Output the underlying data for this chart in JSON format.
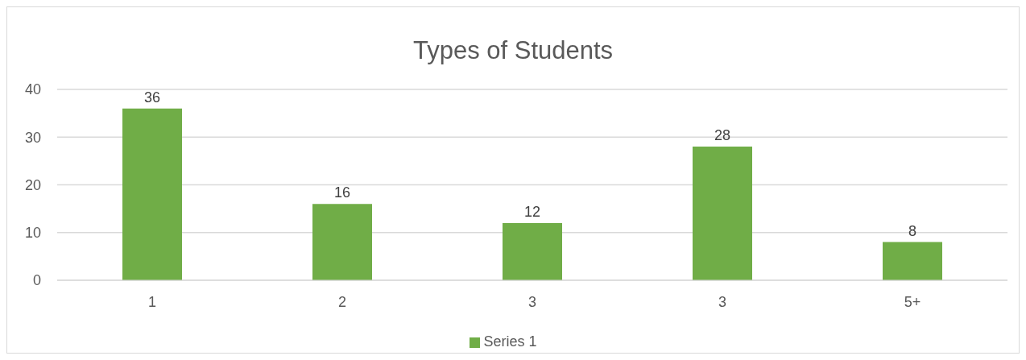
{
  "chart_data": {
    "type": "bar",
    "title": "Types of Students",
    "categories": [
      "1",
      "2",
      "3",
      "3",
      "5+"
    ],
    "series": [
      {
        "name": "Series 1",
        "color": "#70ad47",
        "values": [
          36,
          16,
          12,
          28,
          8
        ]
      }
    ],
    "ylim": [
      0,
      40
    ],
    "yticks": [
      0,
      10,
      20,
      30,
      40
    ],
    "grid": "y",
    "data_labels": true,
    "legend": "bottom"
  }
}
